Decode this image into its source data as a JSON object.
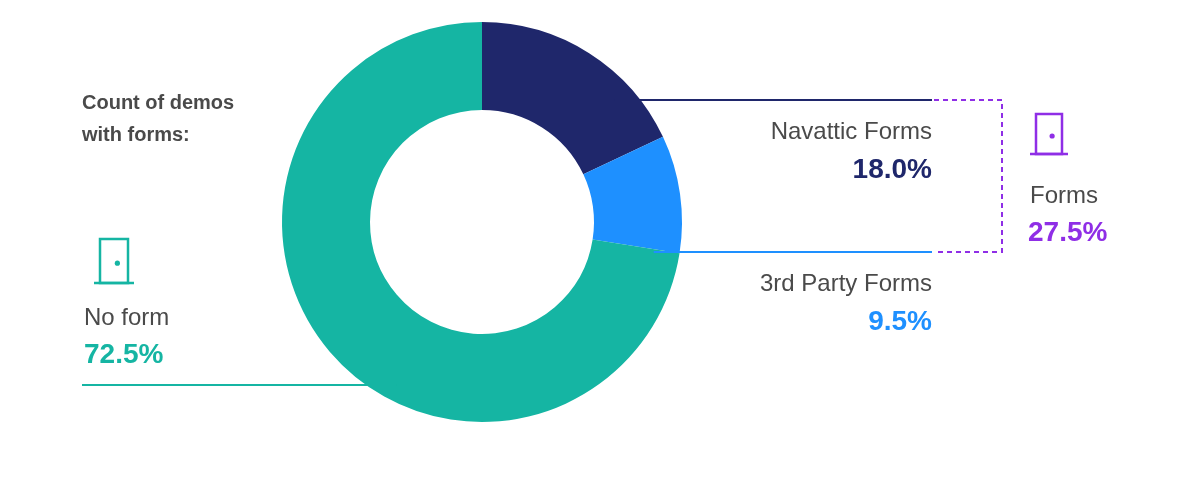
{
  "chart_data": {
    "type": "doughnut",
    "title": "Count of demos with forms:",
    "categories": [
      "Navattic Forms",
      "3rd Party Forms",
      "No form"
    ],
    "values": [
      18.0,
      9.5,
      72.5
    ],
    "value_labels": [
      "18.0%",
      "9.5%",
      "72.5%"
    ],
    "colors": [
      "#1f276b",
      "#1e90ff",
      "#15b5a3"
    ],
    "data_labels": true,
    "annotations": [
      {
        "text": "Forms",
        "value": 27.5,
        "value_label": "27.5%",
        "categories": [
          "Navattic Forms",
          "3rd Party Forms"
        ],
        "color": "#8f2ee6"
      }
    ]
  }
}
